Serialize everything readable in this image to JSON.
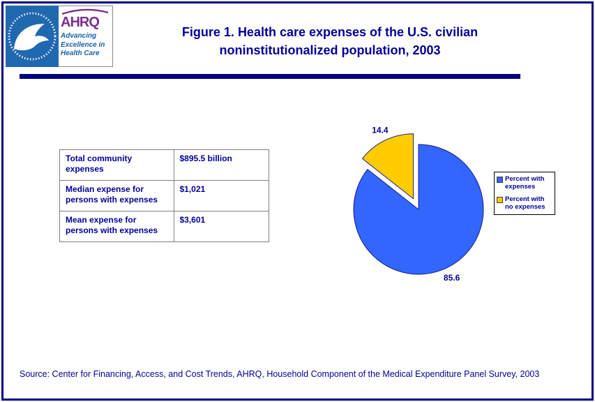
{
  "page": {
    "border_color": "#000080",
    "accent_color": "#000099"
  },
  "header": {
    "title_line1": "Figure 1. Health care expenses of the U.S. civilian",
    "title_line2": "noninstitutionalized population, 2003",
    "hhs_logo_icon": "hhs-eagle-emblem",
    "ahrq_acronym": "AHRQ",
    "ahrq_tagline": [
      "Advancing",
      "Excellence in",
      "Health Care"
    ]
  },
  "stats_table": {
    "rows": [
      {
        "label": "Total community expenses",
        "value": "$895.5 billion"
      },
      {
        "label": "Median expense for persons with expenses",
        "value": "$1,021"
      },
      {
        "label": "Mean expense for persons with expenses",
        "value": "$3,601"
      }
    ]
  },
  "chart_data": {
    "type": "pie",
    "labels": [
      "Percent with expenses",
      "Percent with no expenses"
    ],
    "values": [
      85.6,
      14.4
    ],
    "data_labels": [
      "85.6",
      "14.4"
    ],
    "colors": [
      "#3366FF",
      "#FFCC00"
    ],
    "exploded": [
      false,
      true
    ],
    "start_angle_deg": 0,
    "direction": "clockwise",
    "legend_position": "right",
    "title": ""
  },
  "footer": {
    "source": "Source: Center for Financing, Access, and Cost Trends, AHRQ, Household Component of the Medical Expenditure Panel Survey, 2003"
  }
}
